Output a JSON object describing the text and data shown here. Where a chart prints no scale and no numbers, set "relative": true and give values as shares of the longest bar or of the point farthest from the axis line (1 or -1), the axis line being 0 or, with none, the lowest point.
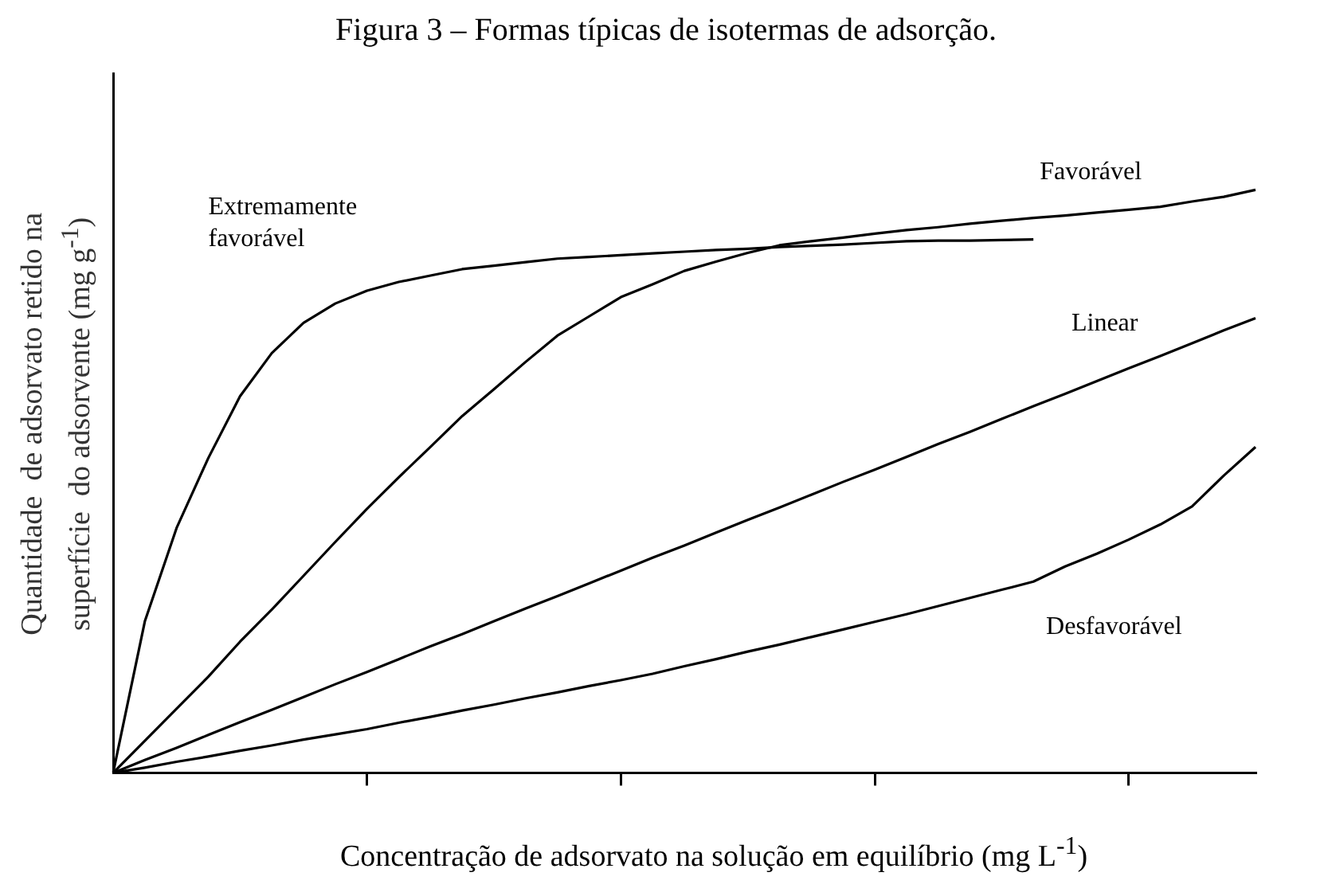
{
  "chart_data": {
    "type": "line",
    "title": "Figura 3 – Formas típicas de isotermas de adsorção.",
    "xlabel": "Concentração de adsorvato na solução em equilíbrio (mg L$^{-1}$)",
    "ylabel": "Quantidade  de adsorvato retido na superfície  do adsorvente (mg g$^{-1}$)",
    "relative": true,
    "grid": false,
    "legend": false,
    "marker": "none",
    "line_style": "solid",
    "categories": [
      null,
      null,
      null,
      null,
      null,
      null,
      null,
      null,
      null,
      null,
      null,
      null,
      null,
      null,
      null,
      null,
      null,
      null,
      null,
      null,
      null,
      null,
      null,
      null,
      null,
      null,
      null,
      null,
      null,
      null,
      null,
      null,
      null,
      null,
      null,
      null,
      null
    ],
    "series": [
      {
        "name": "Extremamente favorável",
        "color": "#000000",
        "values": [
          0,
          0.26,
          0.42,
          0.54,
          0.646,
          0.72,
          0.772,
          0.805,
          0.827,
          0.842,
          0.853,
          0.864,
          0.87,
          0.876,
          0.882,
          0.885,
          0.888,
          0.891,
          0.894,
          0.897,
          0.899,
          0.902,
          0.904,
          0.906,
          0.909,
          0.912,
          0.913,
          0.913,
          0.914,
          0.915,
          null,
          null,
          null,
          null,
          null,
          null,
          null
        ]
      },
      {
        "name": "Favorável",
        "color": "#000000",
        "values": [
          0,
          0.055,
          0.11,
          0.165,
          0.225,
          0.28,
          0.338,
          0.396,
          0.453,
          0.507,
          0.559,
          0.612,
          0.658,
          0.705,
          0.75,
          0.783,
          0.816,
          0.838,
          0.861,
          0.877,
          0.892,
          0.905,
          0.912,
          0.918,
          0.925,
          0.931,
          0.936,
          0.942,
          0.947,
          0.952,
          0.956,
          0.961,
          0.966,
          0.971,
          0.98,
          0.988,
          1
        ]
      },
      {
        "name": "Linear",
        "color": "#000000",
        "values": [
          0,
          0.022,
          0.043,
          0.065,
          0.087,
          0.108,
          0.13,
          0.152,
          0.173,
          0.195,
          0.217,
          0.238,
          0.26,
          0.282,
          0.303,
          0.325,
          0.347,
          0.369,
          0.39,
          0.412,
          0.434,
          0.455,
          0.477,
          0.499,
          0.52,
          0.542,
          0.564,
          0.585,
          0.607,
          0.629,
          0.65,
          0.672,
          0.694,
          0.715,
          0.737,
          0.759,
          0.78
        ]
      },
      {
        "name": "Desfavorável",
        "color": "#000000",
        "values": [
          0,
          0.009,
          0.019,
          0.028,
          0.038,
          0.047,
          0.057,
          0.066,
          0.075,
          0.086,
          0.096,
          0.107,
          0.117,
          0.128,
          0.138,
          0.149,
          0.159,
          0.17,
          0.183,
          0.195,
          0.208,
          0.22,
          0.233,
          0.246,
          0.259,
          0.272,
          0.286,
          0.3,
          0.314,
          0.328,
          0.354,
          0.376,
          0.4,
          0.426,
          0.457,
          0.51,
          0.559
        ]
      }
    ]
  }
}
